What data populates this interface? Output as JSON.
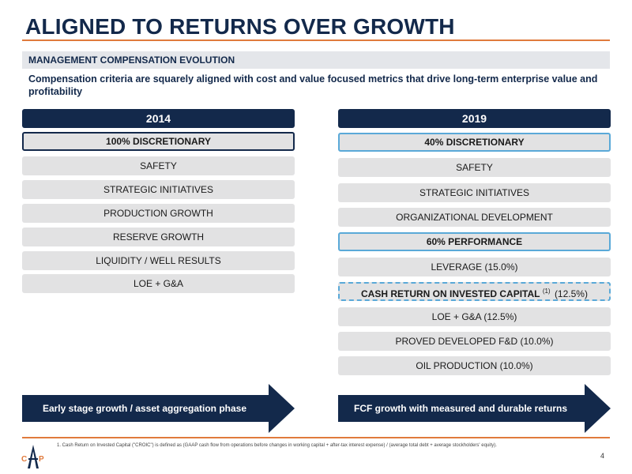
{
  "title": "ALIGNED TO RETURNS OVER GROWTH",
  "section_label": "MANAGEMENT COMPENSATION EVOLUTION",
  "subtitle": "Compensation criteria are squarely aligned with cost and value focused metrics that drive long-term enterprise value and profitability",
  "left_column": {
    "header": "2014",
    "items": [
      "100% DISCRETIONARY",
      "SAFETY",
      "STRATEGIC INITIATIVES",
      "PRODUCTION GROWTH",
      "RESERVE GROWTH",
      "LIQUIDITY / WELL RESULTS",
      "LOE + G&A"
    ],
    "arrow_label": "Early stage growth / asset aggregation phase"
  },
  "right_column": {
    "header": "2019",
    "items": [
      "40% DISCRETIONARY",
      "SAFETY",
      "STRATEGIC INITIATIVES",
      "ORGANIZATIONAL DEVELOPMENT",
      "60% PERFORMANCE",
      "LEVERAGE (15.0%)",
      "CASH RETURN ON INVESTED CAPITAL",
      "LOE + G&A (12.5%)",
      "PROVED DEVELOPED F&D (10.0%)",
      "OIL PRODUCTION (10.0%)"
    ],
    "croic_footnote_mark": "(1)",
    "croic_weight": "(12.5%)",
    "arrow_label": "FCF growth with measured and durable returns"
  },
  "footnote": "1.  Cash Return on Invested Capital (\"CROIC\") is defined as (GAAP cash flow from operations before changes in working capital + after-tax interest expense) / (average total debt + average stockholders' equity).",
  "logo_text": "CAP",
  "page_number": "4",
  "colors": {
    "navy": "#13294b",
    "orange": "#e07a3c",
    "light_blue": "#5aa9d8",
    "item_gray": "#e2e2e3"
  }
}
